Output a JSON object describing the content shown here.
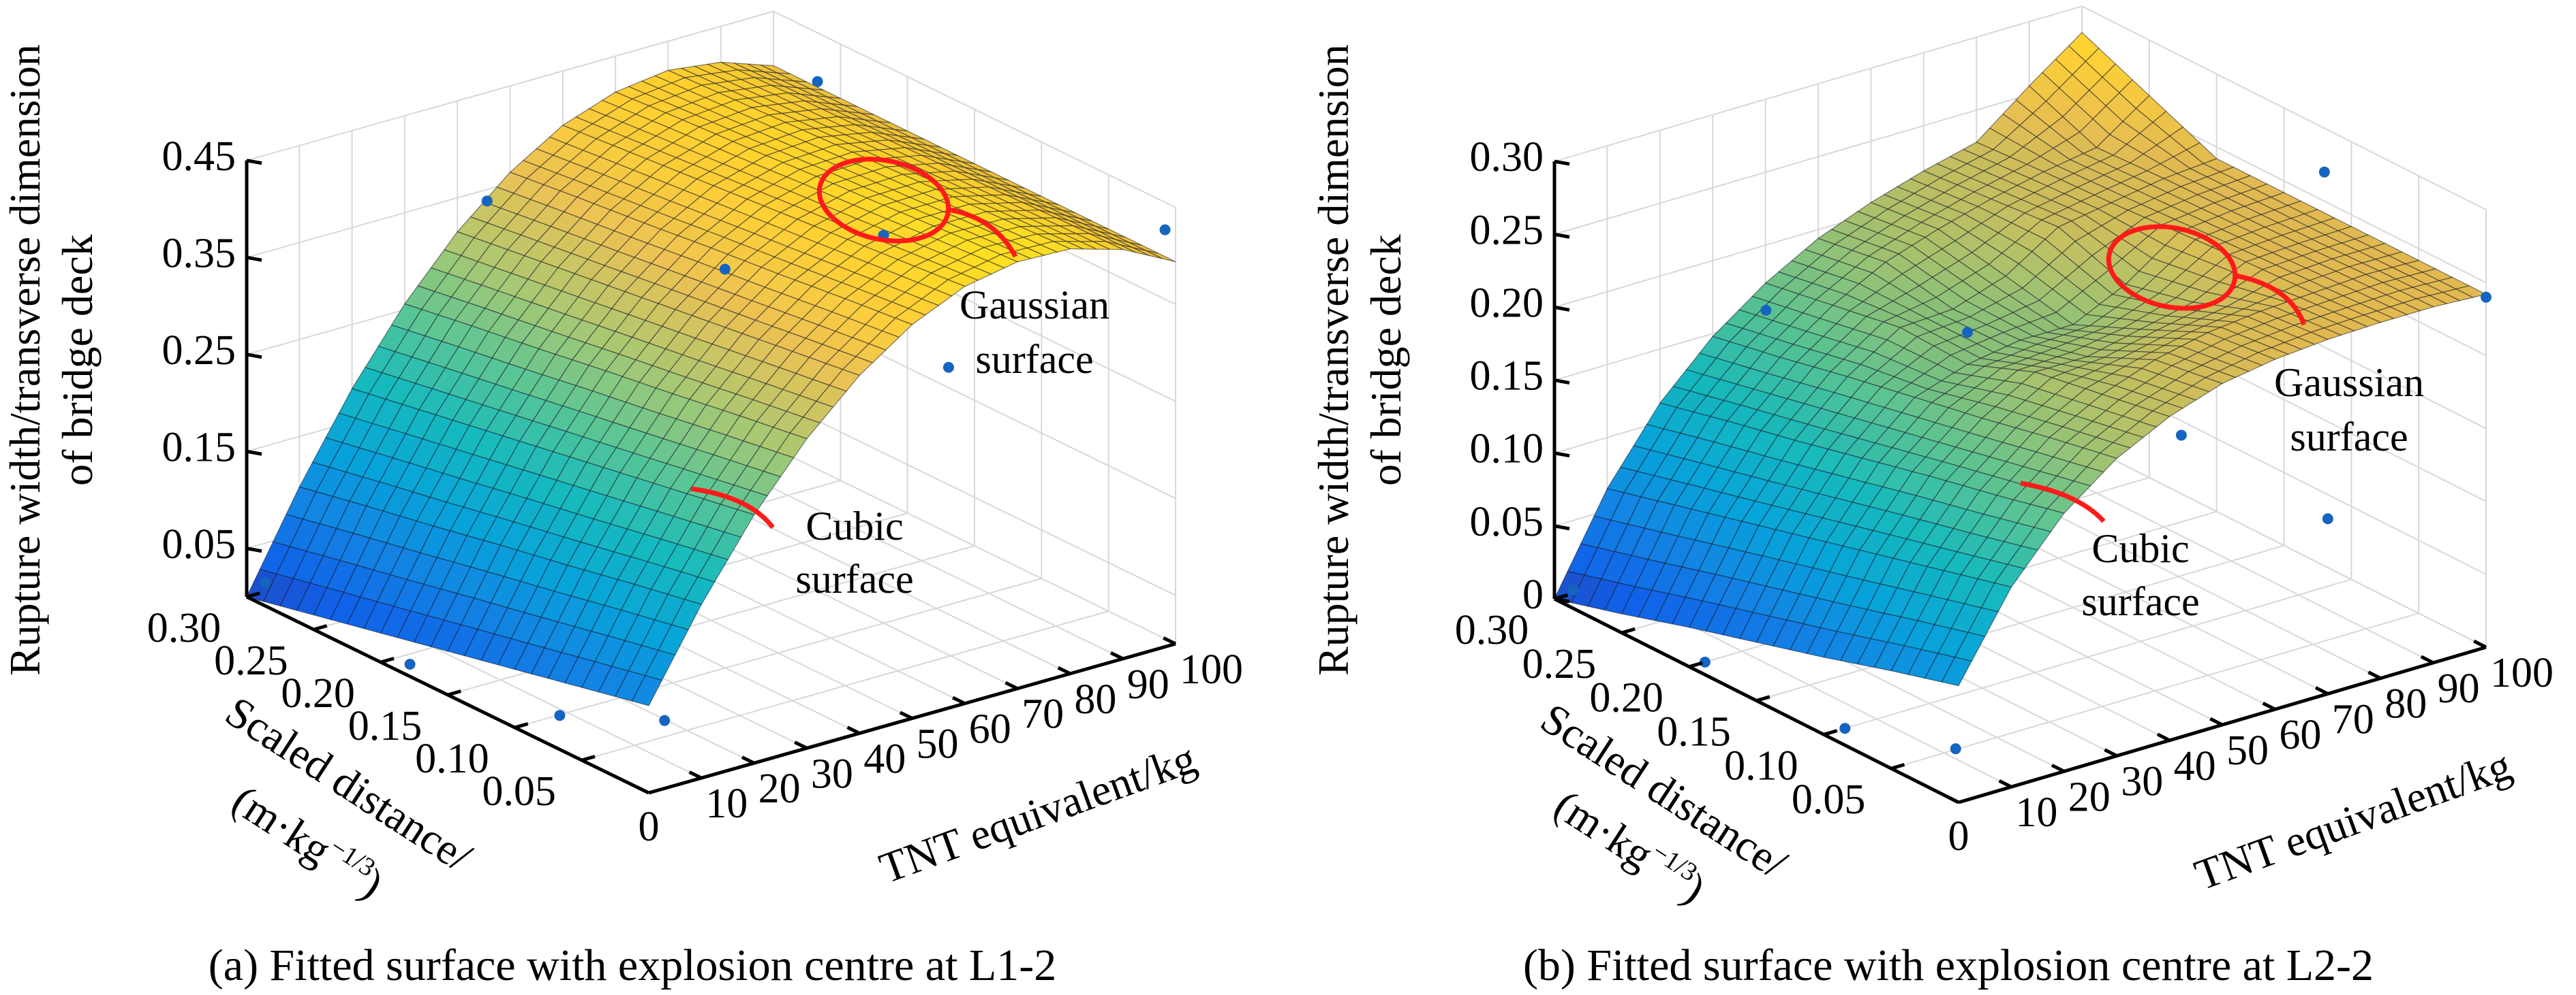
{
  "chart_data": [
    {
      "type": "surface",
      "caption": "(a) Fitted surface with explosion centre at L1-2",
      "zlabel_line1": "Rupture width/transverse dimension",
      "zlabel_line2": "of bridge deck",
      "slabel_line1": "Scaled distance/",
      "slabel_line2": "(m·kg",
      "slabel_exp": "−1/3",
      "slabel_close": ")",
      "tlabel": "TNT equivalent/kg",
      "z_ticks": [
        "0.05",
        "0.15",
        "0.25",
        "0.35",
        "0.45"
      ],
      "s_ticks": [
        "0.30",
        "0.25",
        "0.20",
        "0.15",
        "0.10",
        "0.05"
      ],
      "t_ticks": [
        "0",
        "10",
        "20",
        "30",
        "40",
        "50",
        "60",
        "70",
        "80",
        "90",
        "100"
      ],
      "zlim": [
        0,
        0.45
      ],
      "slim": [
        0,
        0.3
      ],
      "tlim": [
        0,
        100
      ],
      "grid": true,
      "colormap": "parula",
      "s": [
        0,
        0.05,
        0.1,
        0.15,
        0.2,
        0.25,
        0.3
      ],
      "t": [
        0,
        10,
        20,
        30,
        40,
        50,
        60,
        70,
        80,
        90,
        100
      ],
      "z": [
        [
          0.09,
          0.179,
          0.256,
          0.319,
          0.369,
          0.406,
          0.43,
          0.44,
          0.438,
          0.422,
          0.394
        ],
        [
          0.075,
          0.166,
          0.244,
          0.309,
          0.36,
          0.399,
          0.424,
          0.436,
          0.435,
          0.421,
          0.394
        ],
        [
          0.06,
          0.152,
          0.232,
          0.298,
          0.351,
          0.391,
          0.418,
          0.431,
          0.432,
          0.419,
          0.394
        ],
        [
          0.045,
          0.139,
          0.22,
          0.288,
          0.342,
          0.384,
          0.412,
          0.427,
          0.429,
          0.418,
          0.394
        ],
        [
          0.03,
          0.125,
          0.208,
          0.277,
          0.333,
          0.376,
          0.406,
          0.422,
          0.426,
          0.416,
          0.394
        ],
        [
          0.015,
          0.112,
          0.196,
          0.267,
          0.324,
          0.369,
          0.4,
          0.418,
          0.423,
          0.415,
          0.394
        ],
        [
          0.0,
          0.098,
          0.184,
          0.256,
          0.315,
          0.361,
          0.394,
          0.413,
          0.42,
          0.413,
          0.394
        ]
      ],
      "points": [
        [
          0.29,
          1,
          0.02
        ],
        [
          0.19,
          3,
          0.0
        ],
        [
          0.09,
          6,
          0.01
        ],
        [
          0.0,
          3,
          0.07
        ],
        [
          0.27,
          38,
          0.37
        ],
        [
          0.12,
          45,
          0.39
        ],
        [
          0.02,
          62,
          0.33
        ],
        [
          0.22,
          88,
          0.45
        ],
        [
          0.0,
          98,
          0.43
        ],
        [
          0.1,
          70,
          0.4
        ]
      ],
      "annotations": {
        "gaussian_line1": "Gaussian",
        "gaussian_line2": "surface",
        "cubic_line1": "Cubic",
        "cubic_line2": "surface"
      },
      "annotation_color": "#ff1a1a",
      "point_color": "#1565c0"
    },
    {
      "type": "surface",
      "caption": "(b) Fitted surface with explosion centre at L2-2",
      "zlabel_line1": "Rupture width/transverse dimension",
      "zlabel_line2": "of bridge deck",
      "slabel_line1": "Scaled distance/",
      "slabel_line2": "(m·kg",
      "slabel_exp": "−1/3",
      "slabel_close": ")",
      "tlabel": "TNT equivalent/kg",
      "z_ticks": [
        "0",
        "0.05",
        "0.10",
        "0.15",
        "0.20",
        "0.25",
        "0.30"
      ],
      "s_ticks": [
        "0.30",
        "0.25",
        "0.20",
        "0.15",
        "0.10",
        "0.05"
      ],
      "t_ticks": [
        "0",
        "10",
        "20",
        "30",
        "40",
        "50",
        "60",
        "70",
        "80",
        "90",
        "100"
      ],
      "zlim": [
        0,
        0.3
      ],
      "slim": [
        0,
        0.3
      ],
      "tlim": [
        0,
        100
      ],
      "grid": true,
      "colormap": "parula",
      "s": [
        0,
        0.05,
        0.1,
        0.15,
        0.2,
        0.25,
        0.3
      ],
      "t": [
        0,
        10,
        20,
        30,
        40,
        50,
        60,
        70,
        80,
        90,
        100
      ],
      "z": [
        [
          0.08,
          0.137,
          0.177,
          0.204,
          0.222,
          0.234,
          0.24,
          0.243,
          0.244,
          0.244,
          0.242
        ],
        [
          0.067,
          0.125,
          0.166,
          0.195,
          0.214,
          0.227,
          0.235,
          0.239,
          0.241,
          0.243,
          0.242
        ],
        [
          0.053,
          0.113,
          0.156,
          0.185,
          0.206,
          0.206,
          0.214,
          0.222,
          0.239,
          0.241,
          0.242
        ],
        [
          0.04,
          0.101,
          0.145,
          0.176,
          0.188,
          0.194,
          0.194,
          0.211,
          0.236,
          0.24,
          0.242
        ],
        [
          0.027,
          0.089,
          0.134,
          0.167,
          0.19,
          0.192,
          0.204,
          0.227,
          0.233,
          0.239,
          0.242
        ],
        [
          0.013,
          0.077,
          0.124,
          0.157,
          0.182,
          0.201,
          0.213,
          0.223,
          0.231,
          0.237,
          0.262
        ],
        [
          0.0,
          0.065,
          0.113,
          0.148,
          0.174,
          0.194,
          0.208,
          0.219,
          0.228,
          0.256,
          0.282
        ]
      ],
      "points": [
        [
          0.29,
          1,
          0.01
        ],
        [
          0.2,
          3,
          0.0
        ],
        [
          0.1,
          4,
          0.0
        ],
        [
          0.01,
          2,
          0.03
        ],
        [
          0.28,
          35,
          0.17
        ],
        [
          0.15,
          40,
          0.21
        ],
        [
          0.05,
          55,
          0.17
        ],
        [
          0.0,
          70,
          0.12
        ],
        [
          0.3,
          100,
          0.33
        ],
        [
          0.12,
          100,
          0.27
        ],
        [
          0.0,
          100,
          0.24
        ]
      ],
      "annotations": {
        "gaussian_line1": "Gaussian",
        "gaussian_line2": "surface",
        "cubic_line1": "Cubic",
        "cubic_line2": "surface"
      },
      "annotation_color": "#ff1a1a",
      "point_color": "#1565c0"
    }
  ]
}
